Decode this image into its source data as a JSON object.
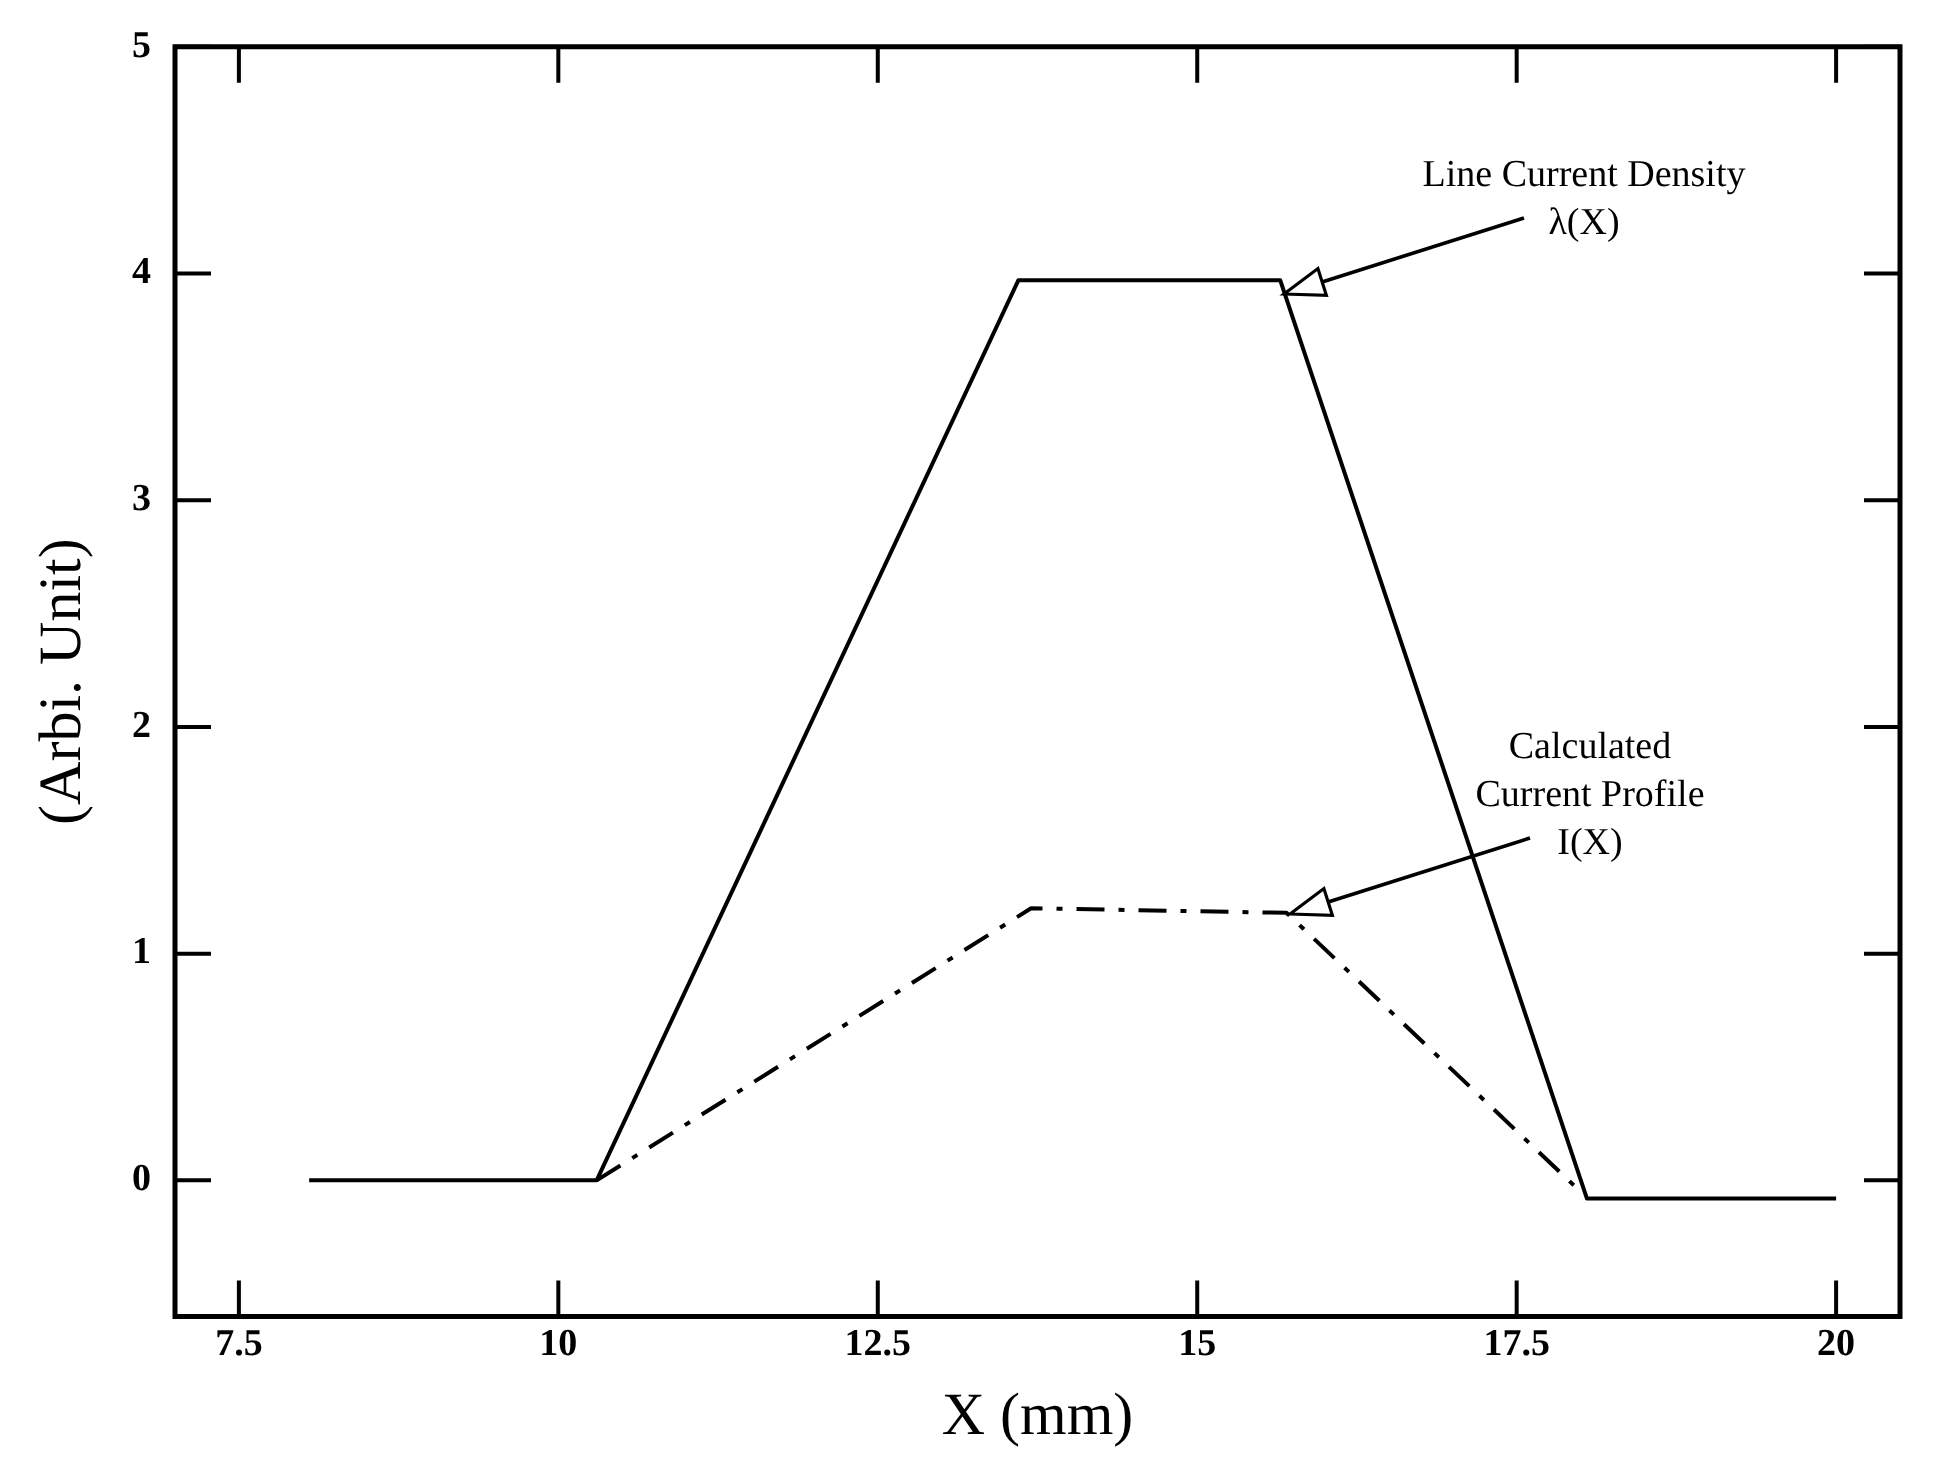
{
  "chart_data": {
    "type": "line",
    "xlabel": "X (mm)",
    "ylabel": "(Arbi. Unit)",
    "xlim": [
      7,
      20.5
    ],
    "xticks": [
      {
        "value": 7.5,
        "label": "7.5"
      },
      10,
      {
        "value": 12.5,
        "label": "12.5"
      },
      15,
      {
        "value": 17.5,
        "label": "17.5"
      },
      20
    ],
    "ylim": [
      -0.6,
      5
    ],
    "yticks": [
      0,
      1,
      2,
      3,
      4,
      5
    ],
    "grid": false,
    "legend": false,
    "marker": "none",
    "series": [
      {
        "color": "#000000",
        "line_style": "solid",
        "x": [
          8.05,
          10.3,
          13.6,
          15.65,
          18.05,
          20
        ],
        "values": [
          0,
          0,
          3.97,
          3.97,
          -0.08,
          -0.08
        ]
      },
      {
        "color": "#000000",
        "line_style": "dashed",
        "x": [
          10.3,
          13.7,
          15.7,
          18.0
        ],
        "values": [
          0,
          1.2,
          1.18,
          -0.05
        ]
      }
    ],
    "annotations": [
      "Line Current Density\nλ(X)",
      "Calculated\nCurrent Profile\nI(X)"
    ]
  }
}
